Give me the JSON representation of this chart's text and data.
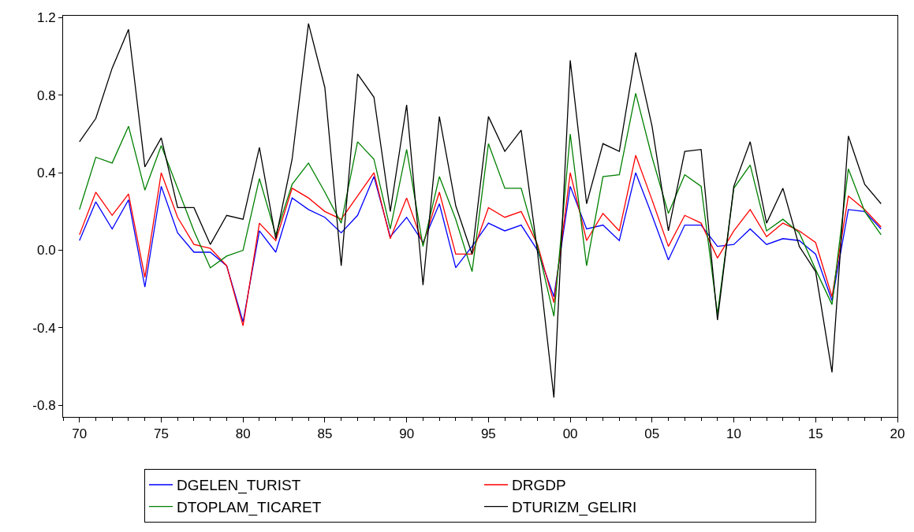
{
  "chart_data": {
    "type": "line",
    "x": [
      1970,
      1971,
      1972,
      1973,
      1974,
      1975,
      1976,
      1977,
      1978,
      1979,
      1980,
      1981,
      1982,
      1983,
      1984,
      1985,
      1986,
      1987,
      1988,
      1989,
      1990,
      1991,
      1992,
      1993,
      1994,
      1995,
      1996,
      1997,
      1998,
      1999,
      2000,
      2001,
      2002,
      2003,
      2004,
      2005,
      2006,
      2007,
      2008,
      2009,
      2010,
      2011,
      2012,
      2013,
      2014,
      2015,
      2016,
      2017,
      2018,
      2019
    ],
    "series": [
      {
        "name": "DGELEN_TURIST",
        "color": "#0000ff",
        "values": [
          0.05,
          0.25,
          0.11,
          0.26,
          -0.19,
          0.33,
          0.09,
          -0.01,
          -0.01,
          -0.08,
          -0.37,
          0.1,
          -0.01,
          0.27,
          0.21,
          0.17,
          0.09,
          0.18,
          0.38,
          0.07,
          0.17,
          0.04,
          0.24,
          -0.09,
          0.02,
          0.14,
          0.1,
          0.13,
          0.0,
          -0.24,
          0.33,
          0.11,
          0.13,
          0.05,
          0.4,
          0.18,
          -0.05,
          0.13,
          0.13,
          0.02,
          0.03,
          0.11,
          0.03,
          0.06,
          0.05,
          -0.02,
          -0.26,
          0.21,
          0.2,
          0.11
        ]
      },
      {
        "name": "DRGDP",
        "color": "#ff0000",
        "values": [
          0.08,
          0.3,
          0.18,
          0.29,
          -0.14,
          0.4,
          0.17,
          0.03,
          0.01,
          -0.08,
          -0.39,
          0.14,
          0.05,
          0.32,
          0.27,
          0.2,
          0.16,
          0.28,
          0.4,
          0.06,
          0.27,
          0.03,
          0.3,
          -0.02,
          -0.02,
          0.22,
          0.17,
          0.2,
          0.03,
          -0.27,
          0.4,
          0.05,
          0.19,
          0.1,
          0.49,
          0.26,
          0.02,
          0.18,
          0.14,
          -0.04,
          0.1,
          0.21,
          0.07,
          0.14,
          0.1,
          0.04,
          -0.24,
          0.28,
          0.21,
          0.12
        ]
      },
      {
        "name": "DTOPLAM_TICARET",
        "color": "#008000",
        "values": [
          0.21,
          0.48,
          0.45,
          0.64,
          0.31,
          0.54,
          0.32,
          0.1,
          -0.09,
          -0.03,
          0.0,
          0.37,
          0.08,
          0.34,
          0.45,
          0.3,
          0.14,
          0.56,
          0.47,
          0.11,
          0.52,
          0.02,
          0.38,
          0.16,
          -0.11,
          0.55,
          0.32,
          0.32,
          0.02,
          -0.34,
          0.6,
          -0.08,
          0.38,
          0.39,
          0.81,
          0.48,
          0.19,
          0.39,
          0.33,
          -0.33,
          0.32,
          0.44,
          0.1,
          0.16,
          0.09,
          -0.1,
          -0.28,
          0.42,
          0.2,
          0.08
        ]
      },
      {
        "name": "DTURIZM_GELIRI",
        "color": "#000000",
        "values": [
          0.56,
          0.68,
          0.94,
          1.14,
          0.43,
          0.58,
          0.22,
          0.22,
          0.03,
          0.18,
          0.16,
          0.53,
          0.06,
          0.47,
          1.17,
          0.84,
          -0.08,
          0.91,
          0.79,
          0.2,
          0.75,
          -0.18,
          0.69,
          0.23,
          -0.02,
          0.69,
          0.51,
          0.62,
          -0.01,
          -0.76,
          0.98,
          0.24,
          0.55,
          0.51,
          1.02,
          0.64,
          0.1,
          0.51,
          0.52,
          -0.36,
          0.33,
          0.56,
          0.14,
          0.32,
          0.02,
          -0.11,
          -0.63,
          0.59,
          0.34,
          0.24
        ]
      }
    ],
    "xlim": [
      1969,
      2020
    ],
    "xticks": [
      {
        "value": 1970,
        "label": "70"
      },
      {
        "value": 1975,
        "label": "75"
      },
      {
        "value": 1980,
        "label": "80"
      },
      {
        "value": 1985,
        "label": "85"
      },
      {
        "value": 1990,
        "label": "90"
      },
      {
        "value": 1995,
        "label": "95"
      },
      {
        "value": 2000,
        "label": "00"
      },
      {
        "value": 2005,
        "label": "05"
      },
      {
        "value": 2010,
        "label": "10"
      },
      {
        "value": 2015,
        "label": "15"
      },
      {
        "value": 2020,
        "label": "20"
      }
    ],
    "ylim": [
      -0.86,
      1.21
    ],
    "yticks": [
      {
        "value": -0.8,
        "label": "-0.8"
      },
      {
        "value": -0.4,
        "label": "-0.4"
      },
      {
        "value": 0,
        "label": "0.0"
      },
      {
        "value": 0.4,
        "label": "0.4"
      },
      {
        "value": 0.8,
        "label": "0.8"
      },
      {
        "value": 1.2,
        "label": "1.2"
      }
    ],
    "grid": false,
    "legend": "bottom"
  }
}
